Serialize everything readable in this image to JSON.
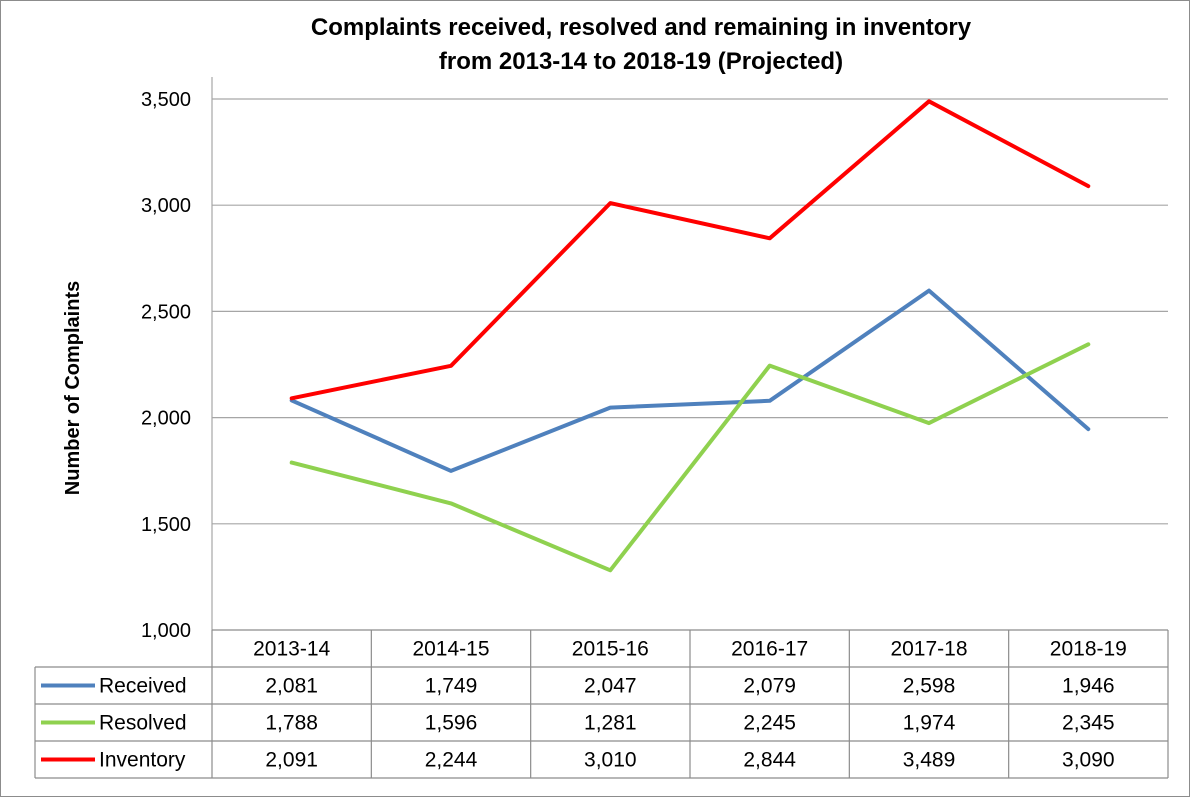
{
  "chart_data": {
    "type": "line",
    "title": "Complaints  received, resolved and remaining in inventory",
    "subtitle": "from 2013-14 to 2018-19 (Projected)",
    "ylabel": "Number of Complaints",
    "xlabel": "",
    "ylim": [
      1000,
      3500
    ],
    "yticks": [
      1000,
      1500,
      2000,
      2500,
      3000,
      3500
    ],
    "ytick_labels": [
      "1,000",
      "1,500",
      "2,000",
      "2,500",
      "3,000",
      "3,500"
    ],
    "grid": "horizontal",
    "legend": "data-table",
    "categories": [
      "2013-14",
      "2014-15",
      "2015-16",
      "2016-17",
      "2017-18",
      "2018-19"
    ],
    "series": [
      {
        "name": "Received",
        "color": "#4f81bd",
        "values": [
          2081,
          1749,
          2047,
          2079,
          2598,
          1946
        ],
        "labels": [
          "2,081",
          "1,749",
          "2,047",
          "2,079",
          "2,598",
          "1,946"
        ]
      },
      {
        "name": "Resolved",
        "color": "#8fd14f",
        "values": [
          1788,
          1596,
          1281,
          2245,
          1974,
          2345
        ],
        "labels": [
          "1,788",
          "1,596",
          "1,281",
          "2,245",
          "1,974",
          "2,345"
        ]
      },
      {
        "name": "Inventory",
        "color": "#ff0000",
        "values": [
          2091,
          2244,
          3010,
          2844,
          3489,
          3090
        ],
        "labels": [
          "2,091",
          "2,244",
          "3,010",
          "2,844",
          "3,489",
          "3,090"
        ]
      }
    ]
  }
}
